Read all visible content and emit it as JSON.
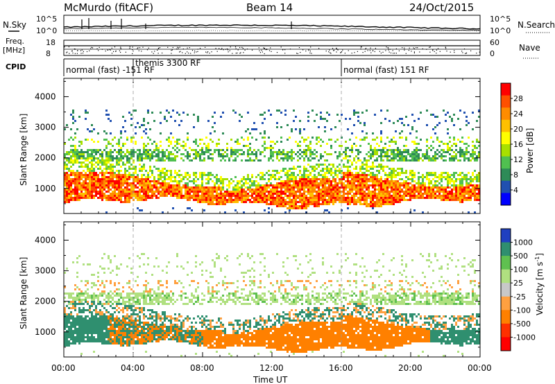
{
  "header": {
    "station": "McMurdo (fitACF)",
    "beam": "Beam 14",
    "date": "24/Oct/2015"
  },
  "noise_panel": {
    "left_label": "N.Sky",
    "right_label": "N.Search",
    "left_ticks": [
      "10^5",
      "10^0"
    ],
    "right_ticks": [
      "10^5",
      "10^0"
    ]
  },
  "freq_panel": {
    "left_label_1": "Freq.",
    "left_label_2": "[MHz]",
    "right_label": "Nave",
    "left_ticks": [
      "18",
      "8"
    ],
    "right_ticks": [
      "60",
      "0"
    ]
  },
  "cpid_panel": {
    "label": "CPID",
    "modes": [
      {
        "name": "normal (fast) -151 RF",
        "start_hour": 0,
        "end_hour": 4
      },
      {
        "name": "themis 3300 RF",
        "start_hour": 4,
        "end_hour": 16
      },
      {
        "name": "normal (fast) 151 RF",
        "start_hour": 16,
        "end_hour": 24
      }
    ]
  },
  "power_colorbar": {
    "label": "Power [dB]",
    "ticks": [
      "28",
      "24",
      "20",
      "16",
      "12",
      "8",
      "4"
    ],
    "colors": [
      "#ff0000",
      "#ff5000",
      "#ff8c00",
      "#ffc000",
      "#ffff00",
      "#a8e000",
      "#50c050",
      "#2e8b57",
      "#2050b0",
      "#0000ff"
    ]
  },
  "velocity_colorbar": {
    "label": "Velocity [m s",
    "label_sup": "-1",
    "label_end": "]",
    "ticks": [
      "1000",
      "500",
      "100",
      "25",
      "-25",
      "-100",
      "-500",
      "-1000"
    ],
    "colors": [
      "#2040c0",
      "#2f8f6f",
      "#5fc050",
      "#b0e080",
      "#c8c8c8",
      "#ffa040",
      "#ff8000",
      "#ff3000",
      "#ff0000"
    ]
  },
  "axes": {
    "ylabel": "Slant Range [km]",
    "xlabel": "Time UT",
    "yticks": [
      "4000",
      "3000",
      "2000",
      "1000"
    ],
    "xticks": [
      "00:00",
      "04:00",
      "08:00",
      "12:00",
      "16:00",
      "20:00",
      "00:00"
    ]
  },
  "chart_data": [
    {
      "type": "heatmap",
      "name": "power",
      "title": "",
      "xlabel": "",
      "ylabel": "Slant Range [km]",
      "xlim_hours": [
        0,
        24
      ],
      "ylim_km": [
        180,
        4600
      ],
      "bands": [
        {
          "range_km": [
            500,
            1400
          ],
          "value": 26
        },
        {
          "range_km": [
            1400,
            1800
          ],
          "value": 14
        },
        {
          "range_km": [
            1900,
            2300
          ],
          "value": 10
        },
        {
          "range_km": [
            2300,
            2700
          ],
          "value": 12
        },
        {
          "range_km": [
            2800,
            3600
          ],
          "value": 6
        }
      ]
    },
    {
      "type": "heatmap",
      "name": "velocity",
      "title": "",
      "xlabel": "Time UT",
      "ylabel": "Slant Range [km]",
      "xlim_hours": [
        0,
        24
      ],
      "ylim_km": [
        180,
        4600
      ],
      "bands": [
        {
          "range_km": [
            500,
            1800
          ],
          "value": -200
        },
        {
          "range_km": [
            1900,
            2300
          ],
          "value": 0
        },
        {
          "range_km": [
            2300,
            2700
          ],
          "value": -50
        },
        {
          "range_km": [
            2800,
            3600
          ],
          "value": 10
        }
      ]
    }
  ]
}
